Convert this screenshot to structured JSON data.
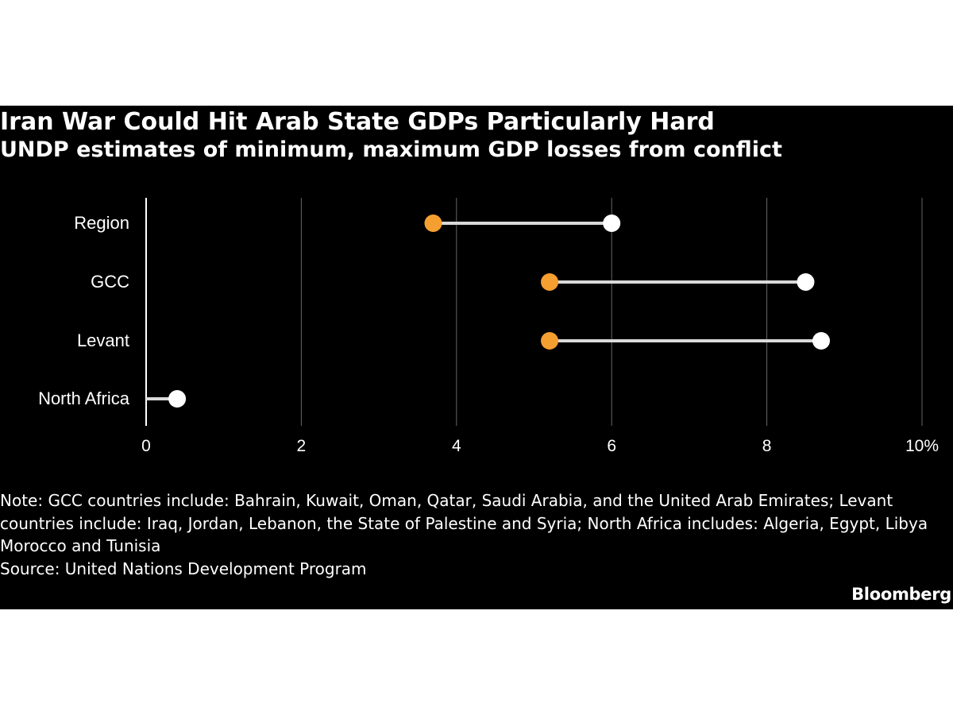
{
  "colors": {
    "background": "#000000",
    "text": "#ffffff",
    "min_marker": "#f69f31",
    "max_marker": "#ffffff",
    "connector": "#d9d9d9",
    "gridline": "#666666"
  },
  "chart_data": {
    "type": "dumbbell",
    "title": "Iran War Could Hit Arab State GDPs Particularly Hard",
    "subtitle": "UNDP estimates of minimum, maximum GDP losses from conflict",
    "categories": [
      "Region",
      "GCC",
      "Levant",
      "North Africa"
    ],
    "series": [
      {
        "values": [
          3.7,
          5.2,
          5.2,
          0.0
        ],
        "color": "#f69f31"
      },
      {
        "values": [
          6.0,
          8.5,
          8.7,
          0.4
        ],
        "color": "#ffffff"
      }
    ],
    "xlim": [
      0,
      10
    ],
    "xticks": [
      0,
      2,
      4,
      6,
      8,
      10
    ],
    "xtick_labels": [
      "0",
      "2",
      "4",
      "6",
      "8",
      "10%"
    ],
    "grid": true,
    "legend": "none"
  },
  "notes": {
    "note": "Note: GCC countries include: Bahrain, Kuwait, Oman, Qatar, Saudi Arabia, and the United Arab Emirates; Levant countries include: Iraq, Jordan, Lebanon, the State of Palestine and Syria; North Africa includes: Algeria, Egypt, Libya Morocco and Tunisia",
    "source": "Source: United Nations Development Program"
  },
  "brand": "Bloomberg"
}
